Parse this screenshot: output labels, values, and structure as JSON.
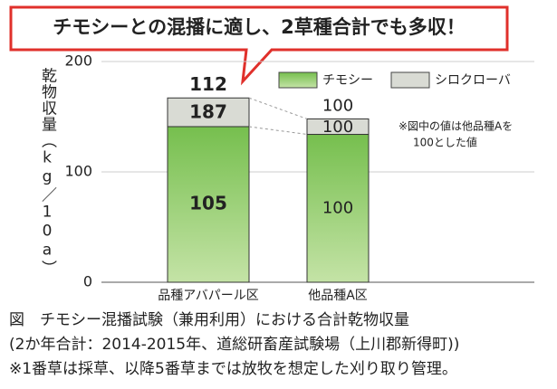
{
  "chart_data": {
    "type": "stacked_bar",
    "title": "チモシーとの混播に適し、2草種合計でも多収！",
    "y_label": "乾物収量（kg／10a）",
    "categories": [
      "品種アバパール区",
      "他品種A区"
    ],
    "series": [
      {
        "name": "チモシー",
        "color": "#9fd27a",
        "values": [
          141,
          134
        ],
        "index": [
          105,
          100
        ]
      },
      {
        "name": "シロクローバ",
        "color": "#d9dbd4",
        "values": [
          26,
          14
        ],
        "index": [
          187,
          100
        ]
      }
    ],
    "total_index": [
      112,
      100
    ],
    "note": [
      "※図中の値は他品種Aを",
      "100とした値"
    ],
    "ylim": [
      0,
      200
    ],
    "yticks": [
      0,
      100,
      200
    ],
    "grid": true,
    "caption": [
      "図　チモシー混播試験（兼用利用）における合計乾物収量",
      "(2か年合計：2014-2015年、道総研畜産試験場（上川郡新得町))",
      "※1番草は採草、以降5番草までは放牧を想定した刈り取り管理。"
    ]
  }
}
